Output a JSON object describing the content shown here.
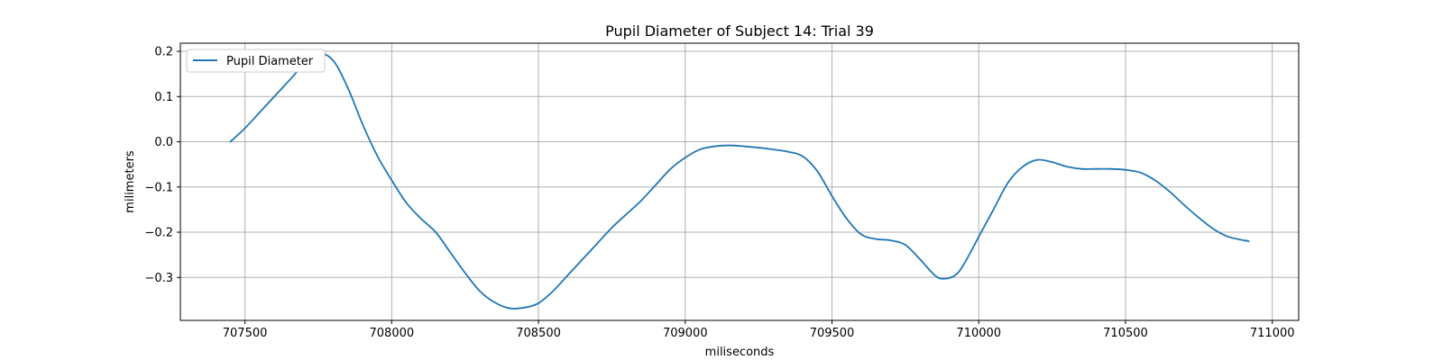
{
  "chart_data": {
    "type": "line",
    "title": "Pupil Diameter of Subject 14: Trial 39",
    "xlabel": "miliseconds",
    "ylabel": "milimeters",
    "xlim": [
      707280,
      711090
    ],
    "ylim": [
      -0.395,
      0.218
    ],
    "xticks": [
      707500,
      708000,
      708500,
      709000,
      709500,
      710000,
      710500,
      711000
    ],
    "yticks": [
      -0.3,
      -0.2,
      -0.1,
      0.0,
      0.1,
      0.2
    ],
    "xtick_labels": [
      "707500",
      "708000",
      "708500",
      "709000",
      "709500",
      "710000",
      "710500",
      "711000"
    ],
    "ytick_labels": [
      "−0.3",
      "−0.2",
      "−0.1",
      "0.0",
      "0.1",
      "0.2"
    ],
    "grid": true,
    "legend_position": "top-left",
    "series": [
      {
        "name": "Pupil Diameter",
        "color": "#1f77b4",
        "x": [
          707450,
          707500,
          707550,
          707600,
          707650,
          707700,
          707750,
          707800,
          707850,
          707900,
          707950,
          708000,
          708050,
          708100,
          708150,
          708200,
          708250,
          708300,
          708350,
          708400,
          708450,
          708500,
          708550,
          708600,
          708650,
          708700,
          708750,
          708800,
          708850,
          708900,
          708950,
          709000,
          709050,
          709100,
          709150,
          709200,
          709250,
          709300,
          709350,
          709400,
          709450,
          709500,
          709550,
          709600,
          709650,
          709700,
          709750,
          709800,
          709850,
          709880,
          709920,
          709950,
          710000,
          710050,
          710100,
          710150,
          710200,
          710250,
          710300,
          710350,
          710400,
          710450,
          710500,
          710550,
          710600,
          710650,
          710700,
          710750,
          710800,
          710850,
          710920
        ],
        "values": [
          0.0,
          0.03,
          0.065,
          0.1,
          0.135,
          0.17,
          0.195,
          0.18,
          0.12,
          0.04,
          -0.03,
          -0.085,
          -0.135,
          -0.17,
          -0.2,
          -0.245,
          -0.29,
          -0.33,
          -0.355,
          -0.368,
          -0.367,
          -0.357,
          -0.33,
          -0.295,
          -0.26,
          -0.225,
          -0.19,
          -0.16,
          -0.13,
          -0.095,
          -0.06,
          -0.035,
          -0.017,
          -0.01,
          -0.008,
          -0.01,
          -0.013,
          -0.017,
          -0.022,
          -0.032,
          -0.065,
          -0.12,
          -0.17,
          -0.205,
          -0.215,
          -0.218,
          -0.228,
          -0.26,
          -0.295,
          -0.303,
          -0.295,
          -0.27,
          -0.21,
          -0.15,
          -0.09,
          -0.055,
          -0.04,
          -0.045,
          -0.055,
          -0.06,
          -0.06,
          -0.06,
          -0.062,
          -0.068,
          -0.085,
          -0.11,
          -0.14,
          -0.168,
          -0.193,
          -0.21,
          -0.22
        ]
      }
    ]
  }
}
